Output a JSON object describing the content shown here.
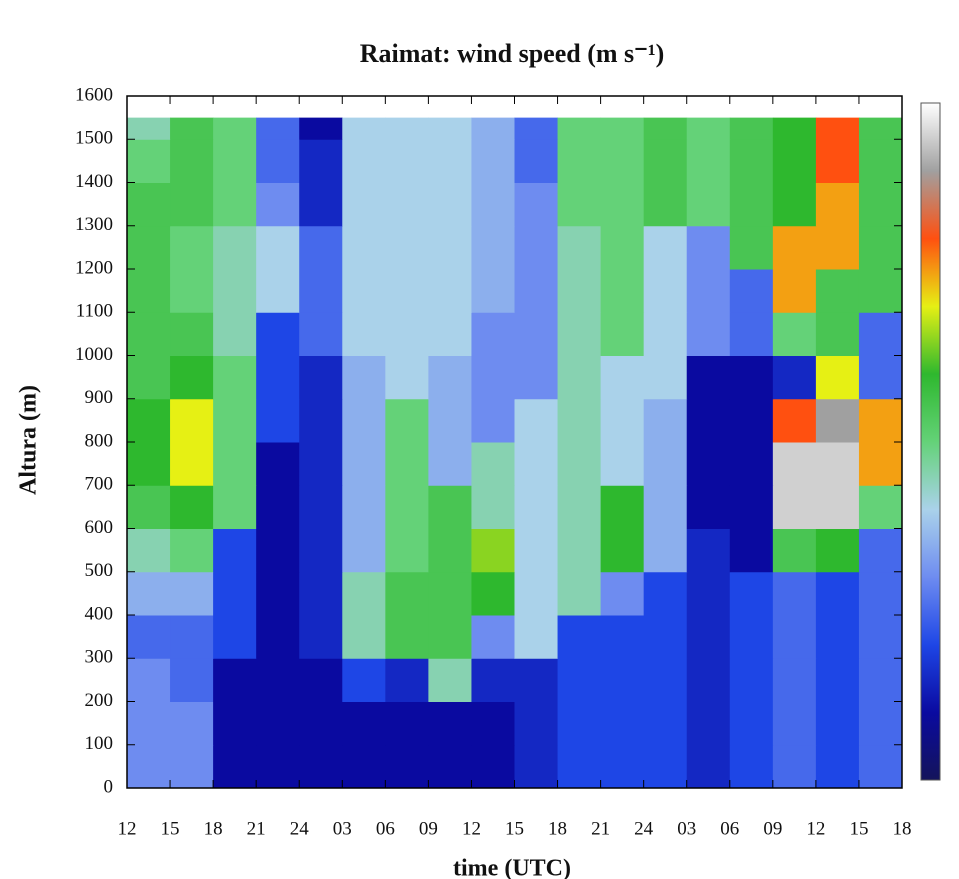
{
  "chart_data": {
    "type": "heatmap",
    "title": "Raimat: wind speed (m s⁻¹)",
    "xlabel": "time (UTC)",
    "ylabel": "Altura (m)",
    "xlim": [
      0,
      54
    ],
    "xticks": [
      {
        "value": 0,
        "label": "12"
      },
      {
        "value": 3,
        "label": "15"
      },
      {
        "value": 6,
        "label": "18"
      },
      {
        "value": 9,
        "label": "21"
      },
      {
        "value": 12,
        "label": "24"
      },
      {
        "value": 15,
        "label": "03"
      },
      {
        "value": 18,
        "label": "06"
      },
      {
        "value": 21,
        "label": "09"
      },
      {
        "value": 24,
        "label": "12"
      },
      {
        "value": 27,
        "label": "15"
      },
      {
        "value": 30,
        "label": "18"
      },
      {
        "value": 33,
        "label": "21"
      },
      {
        "value": 36,
        "label": "24"
      },
      {
        "value": 39,
        "label": "03"
      },
      {
        "value": 42,
        "label": "06"
      },
      {
        "value": 45,
        "label": "09"
      },
      {
        "value": 48,
        "label": "12"
      },
      {
        "value": 51,
        "label": "15"
      },
      {
        "value": 54,
        "label": "18"
      }
    ],
    "ylim": [
      0,
      1600
    ],
    "yticks": [
      0,
      100,
      200,
      300,
      400,
      500,
      600,
      700,
      800,
      900,
      1000,
      1100,
      1200,
      1300,
      1400,
      1500,
      1600
    ],
    "x_edges": [
      0,
      3,
      6,
      9,
      12,
      15,
      18,
      21,
      24,
      27,
      30,
      33,
      36,
      39,
      42,
      45,
      48,
      51,
      54
    ],
    "y_edges": [
      0,
      100,
      200,
      300,
      400,
      500,
      600,
      700,
      800,
      900,
      1000,
      1100,
      1200,
      1300,
      1400,
      1500,
      1550
    ],
    "zlim": [
      0,
      20
    ],
    "colorscale": [
      "#14145a",
      "#0a0aa0",
      "#1e46e6",
      "#6e8cf0",
      "#aad2ea",
      "#64d278",
      "#2eb82e",
      "#e6f014",
      "#ff5010",
      "#a0a0a0",
      "#ffffff"
    ],
    "z": [
      [
        6,
        6,
        2,
        2,
        2,
        2,
        2,
        2,
        2,
        3,
        4,
        4,
        4,
        3,
        4,
        5,
        4,
        5
      ],
      [
        6,
        6,
        2,
        2,
        2,
        2,
        2,
        2,
        2,
        3,
        4,
        4,
        4,
        3,
        4,
        5,
        4,
        5
      ],
      [
        6,
        5,
        2,
        2,
        2,
        4,
        3,
        9,
        3,
        3,
        4,
        4,
        4,
        3,
        4,
        5,
        4,
        5
      ],
      [
        5,
        5,
        4,
        2,
        3,
        9,
        11,
        11,
        6,
        8,
        4,
        4,
        4,
        3,
        4,
        5,
        4,
        5
      ],
      [
        7,
        7,
        4,
        2,
        3,
        9,
        11,
        11,
        12,
        8,
        9,
        6,
        4,
        3,
        4,
        5,
        4,
        5
      ],
      [
        9,
        10,
        4,
        2,
        3,
        7,
        10,
        11,
        13,
        8,
        9,
        12,
        7,
        3,
        2,
        11,
        12,
        5
      ],
      [
        11,
        12,
        10,
        2,
        3,
        7,
        10,
        11,
        9,
        8,
        9,
        12,
        7,
        2,
        2,
        19,
        19,
        10
      ],
      [
        12,
        14,
        10,
        2,
        3,
        7,
        10,
        7,
        9,
        8,
        9,
        8,
        7,
        2,
        2,
        19,
        19,
        15
      ],
      [
        12,
        14,
        10,
        4,
        3,
        7,
        10,
        7,
        6,
        8,
        9,
        8,
        7,
        2,
        2,
        16,
        18,
        15
      ],
      [
        11,
        12,
        10,
        4,
        3,
        7,
        8,
        7,
        6,
        6,
        9,
        8,
        8,
        2,
        2,
        3,
        14,
        5
      ],
      [
        11,
        11,
        9,
        4,
        5,
        8,
        8,
        8,
        6,
        6,
        9,
        10,
        8,
        6,
        5,
        10,
        11,
        5
      ],
      [
        11,
        10,
        9,
        8,
        5,
        8,
        8,
        8,
        7,
        6,
        9,
        10,
        8,
        6,
        5,
        15,
        11,
        11
      ],
      [
        11,
        10,
        9,
        8,
        5,
        8,
        8,
        8,
        7,
        6,
        9,
        10,
        8,
        6,
        11,
        15,
        15,
        11
      ],
      [
        11,
        11,
        10,
        6,
        3,
        8,
        8,
        8,
        7,
        6,
        10,
        10,
        11,
        10,
        11,
        12,
        15,
        11
      ],
      [
        10,
        11,
        10,
        5,
        3,
        8,
        8,
        8,
        7,
        5,
        10,
        10,
        11,
        10,
        11,
        12,
        16,
        11
      ],
      [
        9,
        11,
        10,
        5,
        2,
        8,
        8,
        8,
        7,
        5,
        10,
        10,
        11,
        10,
        11,
        12,
        16,
        11
      ]
    ]
  }
}
